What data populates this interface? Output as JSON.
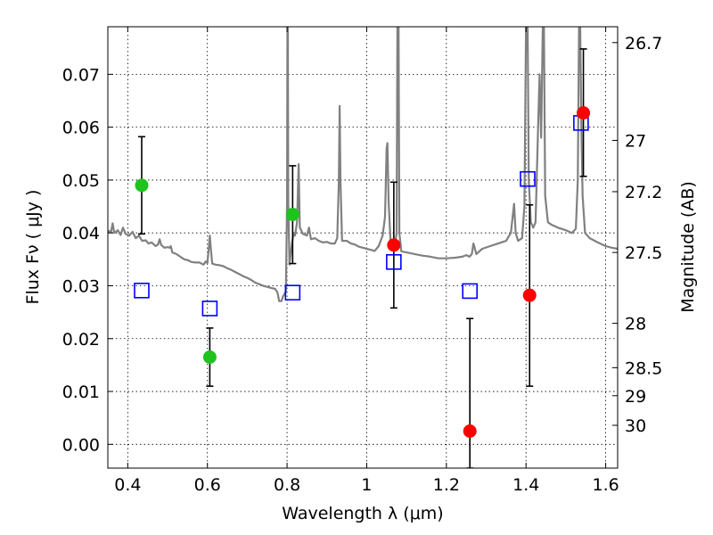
{
  "chart_data": {
    "type": "scatter",
    "xlabel": "Wavelength  λ (μm)",
    "ylabel": "Flux  Fν  ( μJy )",
    "y2label": "Magnitude (AB)",
    "xlim": [
      0.35,
      1.63
    ],
    "ylim": [
      -0.0045,
      0.079
    ],
    "grid": true,
    "colors": {
      "spectrum": "#808080",
      "green": "#1ec31e",
      "red": "#ff0000",
      "model": "#0000ff",
      "errorbar": "#000000"
    },
    "x_ticks": [
      {
        "value": 0.4,
        "label": "0.4"
      },
      {
        "value": 0.6,
        "label": "0.6"
      },
      {
        "value": 0.8,
        "label": "0.8"
      },
      {
        "value": 1.0,
        "label": "1"
      },
      {
        "value": 1.2,
        "label": "1.2"
      },
      {
        "value": 1.4,
        "label": "1.4"
      },
      {
        "value": 1.6,
        "label": "1.6"
      }
    ],
    "y_ticks": [
      {
        "value": 0.0,
        "label": "0.00"
      },
      {
        "value": 0.01,
        "label": "0.01"
      },
      {
        "value": 0.02,
        "label": "0.02"
      },
      {
        "value": 0.03,
        "label": "0.03"
      },
      {
        "value": 0.04,
        "label": "0.04"
      },
      {
        "value": 0.05,
        "label": "0.05"
      },
      {
        "value": 0.06,
        "label": "0.06"
      },
      {
        "value": 0.07,
        "label": "0.07"
      }
    ],
    "y2_ticks": [
      {
        "flux": 0.076,
        "label": "26.7"
      },
      {
        "flux": 0.0575,
        "label": "27"
      },
      {
        "flux": 0.0478,
        "label": "27.2"
      },
      {
        "flux": 0.0363,
        "label": "27.5"
      },
      {
        "flux": 0.0229,
        "label": "28"
      },
      {
        "flux": 0.0145,
        "label": "28.5"
      },
      {
        "flux": 0.0092,
        "label": "29"
      },
      {
        "flux": 0.0036,
        "label": "30"
      }
    ],
    "observed_points": [
      {
        "x": 0.435,
        "y": 0.049,
        "err_low": 0.0398,
        "err_high": 0.0582,
        "color": "green"
      },
      {
        "x": 0.606,
        "y": 0.0165,
        "err_low": 0.011,
        "err_high": 0.022,
        "color": "green"
      },
      {
        "x": 0.814,
        "y": 0.0435,
        "err_low": 0.0342,
        "err_high": 0.0527,
        "color": "green"
      },
      {
        "x": 1.068,
        "y": 0.0377,
        "err_low": 0.0258,
        "err_high": 0.0496,
        "color": "red"
      },
      {
        "x": 1.259,
        "y": 0.0025,
        "err_low": -0.0045,
        "err_high": 0.0238,
        "color": "red"
      },
      {
        "x": 1.409,
        "y": 0.0282,
        "err_low": 0.011,
        "err_high": 0.0453,
        "color": "red"
      },
      {
        "x": 1.544,
        "y": 0.0627,
        "err_low": 0.0507,
        "err_high": 0.0748,
        "color": "red"
      }
    ],
    "model_points": [
      {
        "x": 0.435,
        "y": 0.0291
      },
      {
        "x": 0.606,
        "y": 0.0257
      },
      {
        "x": 0.814,
        "y": 0.0287
      },
      {
        "x": 1.068,
        "y": 0.0345
      },
      {
        "x": 1.259,
        "y": 0.029
      },
      {
        "x": 1.404,
        "y": 0.0502
      },
      {
        "x": 1.538,
        "y": 0.0608
      }
    ],
    "spectrum": [
      [
        0.35,
        0.0404
      ],
      [
        0.358,
        0.0402
      ],
      [
        0.362,
        0.0418
      ],
      [
        0.366,
        0.04
      ],
      [
        0.375,
        0.0405
      ],
      [
        0.382,
        0.0396
      ],
      [
        0.388,
        0.041
      ],
      [
        0.395,
        0.0398
      ],
      [
        0.404,
        0.0395
      ],
      [
        0.412,
        0.0402
      ],
      [
        0.42,
        0.039
      ],
      [
        0.428,
        0.0395
      ],
      [
        0.436,
        0.0385
      ],
      [
        0.445,
        0.0386
      ],
      [
        0.452,
        0.038
      ],
      [
        0.46,
        0.0382
      ],
      [
        0.47,
        0.0375
      ],
      [
        0.476,
        0.0378
      ],
      [
        0.48,
        0.0388
      ],
      [
        0.484,
        0.0377
      ],
      [
        0.492,
        0.0372
      ],
      [
        0.5,
        0.0373
      ],
      [
        0.505,
        0.0372
      ],
      [
        0.508,
        0.0375
      ],
      [
        0.512,
        0.0363
      ],
      [
        0.522,
        0.036
      ],
      [
        0.532,
        0.0355
      ],
      [
        0.542,
        0.035
      ],
      [
        0.552,
        0.0348
      ],
      [
        0.56,
        0.0345
      ],
      [
        0.57,
        0.0344
      ],
      [
        0.58,
        0.0344
      ],
      [
        0.59,
        0.034
      ],
      [
        0.596,
        0.0346
      ],
      [
        0.6,
        0.0343
      ],
      [
        0.604,
        0.0375
      ],
      [
        0.606,
        0.0395
      ],
      [
        0.608,
        0.0375
      ],
      [
        0.612,
        0.0342
      ],
      [
        0.62,
        0.034
      ],
      [
        0.63,
        0.0339
      ],
      [
        0.64,
        0.0337
      ],
      [
        0.65,
        0.0333
      ],
      [
        0.66,
        0.033
      ],
      [
        0.67,
        0.0326
      ],
      [
        0.68,
        0.0322
      ],
      [
        0.69,
        0.0318
      ],
      [
        0.7,
        0.0315
      ],
      [
        0.71,
        0.0311
      ],
      [
        0.72,
        0.0306
      ],
      [
        0.73,
        0.0303
      ],
      [
        0.74,
        0.03
      ],
      [
        0.75,
        0.0298
      ],
      [
        0.76,
        0.0296
      ],
      [
        0.77,
        0.0294
      ],
      [
        0.776,
        0.0287
      ],
      [
        0.78,
        0.0271
      ],
      [
        0.786,
        0.0271
      ],
      [
        0.79,
        0.028
      ],
      [
        0.794,
        0.0285
      ],
      [
        0.797,
        0.029
      ],
      [
        0.8,
        0.046
      ],
      [
        0.801,
        0.079
      ],
      [
        0.802,
        0.079
      ],
      [
        0.803,
        0.046
      ],
      [
        0.806,
        0.034
      ],
      [
        0.812,
        0.038
      ],
      [
        0.817,
        0.04
      ],
      [
        0.82,
        0.0395
      ],
      [
        0.825,
        0.042
      ],
      [
        0.829,
        0.053
      ],
      [
        0.832,
        0.041
      ],
      [
        0.84,
        0.0398
      ],
      [
        0.85,
        0.0395
      ],
      [
        0.855,
        0.041
      ],
      [
        0.86,
        0.0388
      ],
      [
        0.87,
        0.039
      ],
      [
        0.88,
        0.0385
      ],
      [
        0.89,
        0.0382
      ],
      [
        0.9,
        0.0383
      ],
      [
        0.91,
        0.038
      ],
      [
        0.92,
        0.038
      ],
      [
        0.926,
        0.039
      ],
      [
        0.93,
        0.05
      ],
      [
        0.932,
        0.064
      ],
      [
        0.934,
        0.05
      ],
      [
        0.938,
        0.0385
      ],
      [
        0.95,
        0.0385
      ],
      [
        0.96,
        0.038
      ],
      [
        0.97,
        0.0378
      ],
      [
        0.98,
        0.0374
      ],
      [
        0.99,
        0.0372
      ],
      [
        1.0,
        0.037
      ],
      [
        1.01,
        0.0368
      ],
      [
        1.02,
        0.0366
      ],
      [
        1.03,
        0.0375
      ],
      [
        1.04,
        0.0395
      ],
      [
        1.046,
        0.043
      ],
      [
        1.05,
        0.056
      ],
      [
        1.052,
        0.057
      ],
      [
        1.055,
        0.046
      ],
      [
        1.06,
        0.038
      ],
      [
        1.066,
        0.0375
      ],
      [
        1.07,
        0.0372
      ],
      [
        1.075,
        0.04
      ],
      [
        1.077,
        0.079
      ],
      [
        1.08,
        0.079
      ],
      [
        1.082,
        0.04
      ],
      [
        1.087,
        0.0365
      ],
      [
        1.1,
        0.0363
      ],
      [
        1.12,
        0.036
      ],
      [
        1.14,
        0.0357
      ],
      [
        1.16,
        0.0355
      ],
      [
        1.18,
        0.0352
      ],
      [
        1.2,
        0.0352
      ],
      [
        1.22,
        0.0353
      ],
      [
        1.24,
        0.0355
      ],
      [
        1.25,
        0.0358
      ],
      [
        1.258,
        0.0355
      ],
      [
        1.264,
        0.036
      ],
      [
        1.268,
        0.038
      ],
      [
        1.27,
        0.0375
      ],
      [
        1.275,
        0.036
      ],
      [
        1.29,
        0.037
      ],
      [
        1.31,
        0.0375
      ],
      [
        1.33,
        0.038
      ],
      [
        1.35,
        0.0385
      ],
      [
        1.362,
        0.04
      ],
      [
        1.37,
        0.0455
      ],
      [
        1.374,
        0.04
      ],
      [
        1.38,
        0.0385
      ],
      [
        1.39,
        0.039
      ],
      [
        1.396,
        0.045
      ],
      [
        1.4,
        0.079
      ],
      [
        1.404,
        0.079
      ],
      [
        1.407,
        0.05
      ],
      [
        1.412,
        0.042
      ],
      [
        1.418,
        0.041
      ],
      [
        1.424,
        0.042
      ],
      [
        1.43,
        0.059
      ],
      [
        1.434,
        0.07
      ],
      [
        1.438,
        0.058
      ],
      [
        1.442,
        0.079
      ],
      [
        1.445,
        0.079
      ],
      [
        1.448,
        0.047
      ],
      [
        1.455,
        0.042
      ],
      [
        1.465,
        0.0415
      ],
      [
        1.48,
        0.041
      ],
      [
        1.5,
        0.0405
      ],
      [
        1.515,
        0.04
      ],
      [
        1.525,
        0.0408
      ],
      [
        1.53,
        0.05
      ],
      [
        1.533,
        0.079
      ],
      [
        1.536,
        0.079
      ],
      [
        1.539,
        0.06
      ],
      [
        1.542,
        0.047
      ],
      [
        1.548,
        0.04
      ],
      [
        1.56,
        0.039
      ],
      [
        1.58,
        0.0382
      ],
      [
        1.6,
        0.0375
      ],
      [
        1.615,
        0.0372
      ],
      [
        1.63,
        0.037
      ]
    ]
  }
}
